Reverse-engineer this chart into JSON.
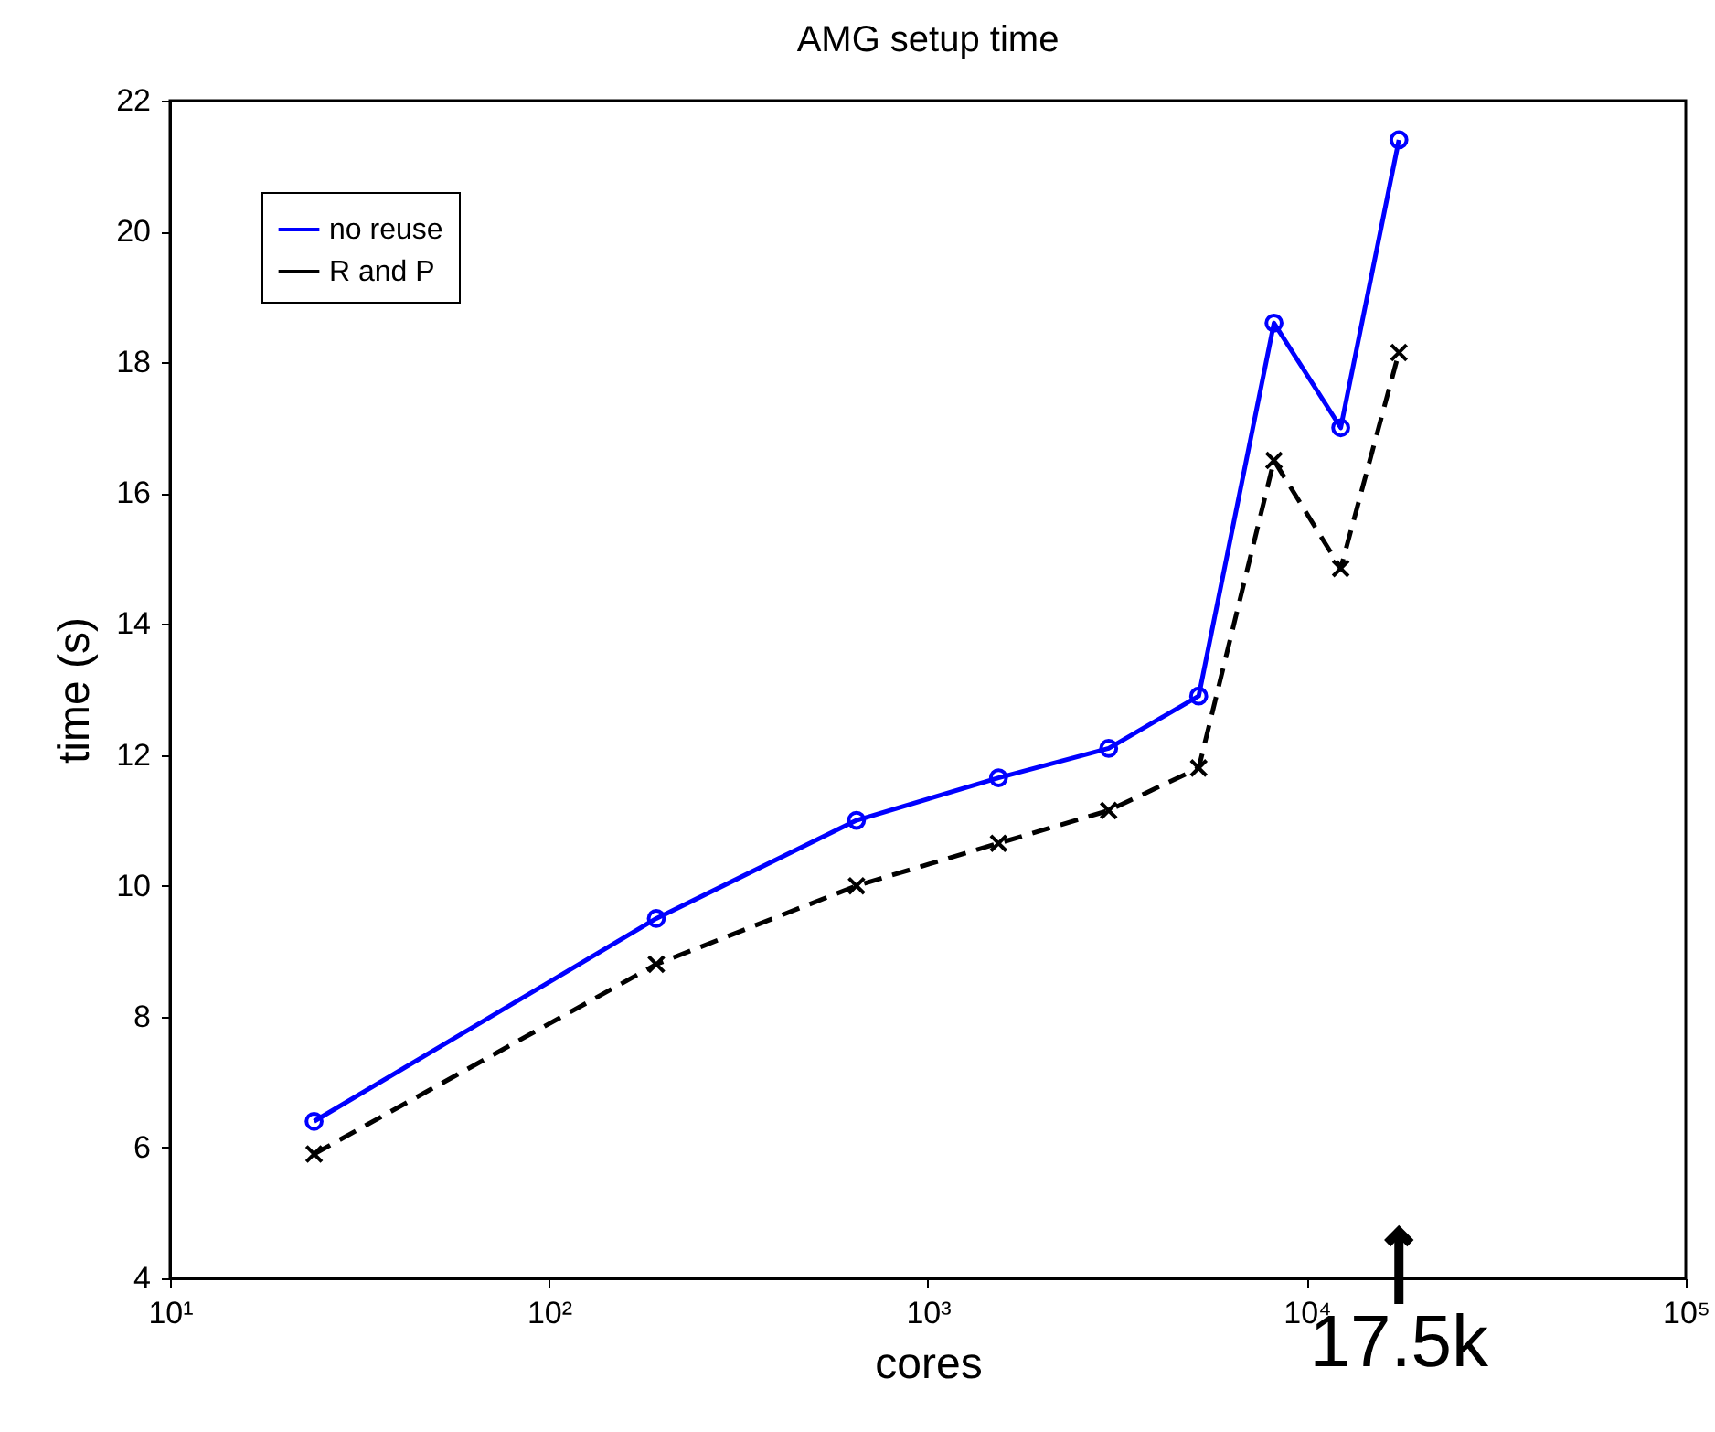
{
  "chart_data": {
    "type": "line",
    "title": "AMG setup time",
    "xlabel": "cores",
    "ylabel": "time (s)",
    "log": "x",
    "legend": "top left",
    "xlim": [
      10,
      100000
    ],
    "xticks": [
      {
        "value": 10,
        "label": "10¹"
      },
      {
        "value": 100,
        "label": "10²"
      },
      {
        "value": 1000,
        "label": "10³"
      },
      {
        "value": 10000,
        "label": "10⁴"
      },
      {
        "value": 100000,
        "label": "10⁵"
      }
    ],
    "ylim": [
      4,
      22
    ],
    "yticks": [
      4,
      6,
      8,
      10,
      12,
      14,
      16,
      18,
      20,
      22
    ],
    "x": [
      24,
      192,
      648,
      1536,
      3000,
      5184,
      8192,
      12288,
      17500
    ],
    "series": [
      {
        "name": "no reuse",
        "color": "#0000ff",
        "marker": "circle",
        "line_style": "solid",
        "values": [
          6.4,
          9.5,
          11.0,
          11.65,
          12.1,
          12.9,
          18.6,
          17.0,
          21.4
        ]
      },
      {
        "name": "R and P",
        "color": "#000000",
        "marker": "cross",
        "line_style": "dashed",
        "values": [
          5.9,
          8.8,
          10.0,
          10.65,
          11.15,
          11.8,
          16.5,
          14.85,
          18.15
        ]
      }
    ],
    "annotations": [
      "17.5k"
    ]
  }
}
